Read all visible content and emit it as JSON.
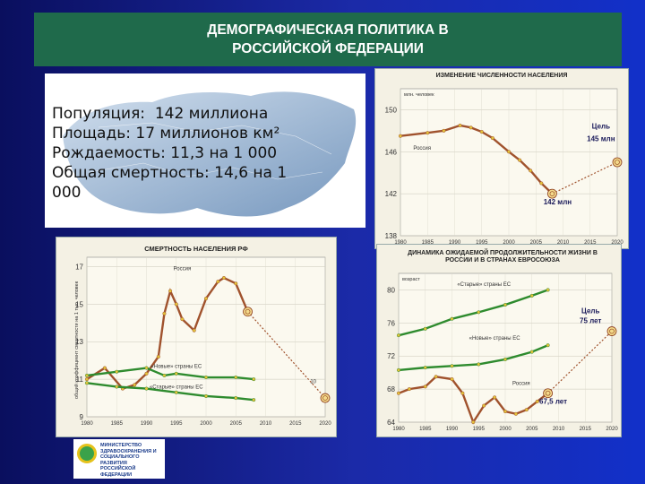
{
  "slide": {
    "title_line1": "ДЕМОГРАФИЧЕСКАЯ ПОЛИТИКА В",
    "title_line2": "РОССИЙСКОЙ ФЕДЕРАЦИИ",
    "facts": [
      "Популяция:  142 миллиона",
      "Площадь: 17 миллионов км²",
      "Рождаемость: 11,3 на 1 000",
      "Общая смертность: 14,6 на 1",
      "000"
    ],
    "logo_text": "МИНИСТЕРСТВО ЗДРАВООХРАНЕНИЯ И СОЦИАЛЬНОГО РАЗВИТИЯ РОССИЙСКОЙ ФЕДЕРАЦИИ"
  },
  "chart_data": [
    {
      "type": "line",
      "title": "ИЗМЕНЕНИЕ ЧИСЛЕННОСТИ НАСЕЛЕНИЯ",
      "ylabel": "млн. человек",
      "x_ticks": [
        "1980",
        "1985",
        "1990",
        "1995",
        "2000",
        "2005",
        "2010",
        "2015",
        "2020"
      ],
      "y_ticks": [
        "138",
        "142",
        "146",
        "150"
      ],
      "ylim": [
        138,
        152
      ],
      "xlim": [
        1980,
        2020
      ],
      "series": [
        {
          "name": "Россия",
          "color": "#a0522d",
          "x": [
            1980,
            1985,
            1988,
            1991,
            1993,
            1995,
            1997,
            2000,
            2002,
            2004,
            2006,
            2008
          ],
          "y": [
            147.5,
            147.8,
            148.0,
            148.5,
            148.3,
            147.9,
            147.3,
            146.0,
            145.2,
            144.2,
            143.0,
            142.0
          ]
        },
        {
          "name": "",
          "color": "#a0522d",
          "dashed": true,
          "x": [
            2008,
            2020
          ],
          "y": [
            142.0,
            145.0
          ]
        }
      ],
      "annotations": [
        {
          "text": "Цель",
          "x": 2017,
          "y": 148.2
        },
        {
          "text": "145 млн",
          "x": 2017,
          "y": 147.0
        },
        {
          "text": "142 млн",
          "x": 2009,
          "y": 141.0
        },
        {
          "text": "Россия",
          "x": 1984,
          "y": 146.2
        }
      ]
    },
    {
      "type": "line",
      "title": "СМЕРТНОСТЬ НАСЕЛЕНИЯ РФ",
      "ylabel": "общий коэффициент смертности на 1 тыс. человек",
      "x_ticks": [
        "1980",
        "1985",
        "1990",
        "1995",
        "2000",
        "2005",
        "2010",
        "2015",
        "2020"
      ],
      "y_ticks": [
        "9",
        "11",
        "13",
        "15",
        "17"
      ],
      "ylim": [
        9,
        17.5
      ],
      "xlim": [
        1980,
        2020
      ],
      "series": [
        {
          "name": "Россия",
          "color": "#a0522d",
          "x": [
            1980,
            1983,
            1986,
            1988,
            1990,
            1992,
            1993,
            1994,
            1995,
            1996,
            1998,
            2000,
            2002,
            2003,
            2005,
            2007
          ],
          "y": [
            11.0,
            11.6,
            10.5,
            10.7,
            11.3,
            12.2,
            14.5,
            15.7,
            15.0,
            14.2,
            13.6,
            15.3,
            16.2,
            16.4,
            16.1,
            14.6
          ]
        },
        {
          "name": "",
          "color": "#a0522d",
          "dashed": true,
          "x": [
            2007,
            2020
          ],
          "y": [
            14.6,
            10.0
          ]
        },
        {
          "name": "«Новые» страны ЕС",
          "color": "#2e8b2e",
          "x": [
            1980,
            1985,
            1990,
            1993,
            1995,
            2000,
            2005,
            2008
          ],
          "y": [
            11.2,
            11.4,
            11.6,
            11.2,
            11.3,
            11.1,
            11.1,
            11.0
          ]
        },
        {
          "name": "«Старые» страны ЕС",
          "color": "#2e8b2e",
          "x": [
            1980,
            1985,
            1990,
            1995,
            2000,
            2005,
            2008
          ],
          "y": [
            10.8,
            10.6,
            10.5,
            10.3,
            10.1,
            10.0,
            9.9
          ]
        }
      ],
      "annotations": [
        {
          "text": "Россия",
          "x": 1996,
          "y": 16.8
        },
        {
          "text": "«Новые» страны ЕС",
          "x": 1995,
          "y": 11.6
        },
        {
          "text": "«Старые» страны ЕС",
          "x": 1995,
          "y": 10.5
        },
        {
          "text": "10",
          "x": 2018,
          "y": 10.8
        }
      ]
    },
    {
      "type": "line",
      "title": "ДИНАМИКА ОЖИДАЕМОЙ ПРОДОЛЖИТЕЛЬНОСТИ ЖИЗНИ В РОССИИ И В СТРАНАХ ЕВРОСОЮЗА",
      "ylabel": "возраст",
      "x_ticks": [
        "1980",
        "1985",
        "1990",
        "1995",
        "2000",
        "2005",
        "2010",
        "2015",
        "2020"
      ],
      "y_ticks": [
        "64",
        "68",
        "72",
        "76",
        "80"
      ],
      "ylim": [
        64,
        82
      ],
      "xlim": [
        1980,
        2020
      ],
      "series": [
        {
          "name": "«Старые» страны ЕС",
          "color": "#2e8b2e",
          "x": [
            1980,
            1985,
            1990,
            1995,
            2000,
            2005,
            2008
          ],
          "y": [
            74.5,
            75.3,
            76.5,
            77.3,
            78.2,
            79.3,
            80.0
          ]
        },
        {
          "name": "«Новые» страны ЕС",
          "color": "#2e8b2e",
          "x": [
            1980,
            1985,
            1990,
            1995,
            2000,
            2005,
            2008
          ],
          "y": [
            70.3,
            70.6,
            70.8,
            71.0,
            71.6,
            72.5,
            73.3
          ]
        },
        {
          "name": "Россия",
          "color": "#a0522d",
          "x": [
            1980,
            1982,
            1985,
            1987,
            1990,
            1992,
            1994,
            1996,
            1998,
            2000,
            2002,
            2004,
            2006,
            2008
          ],
          "y": [
            67.5,
            68.0,
            68.3,
            69.5,
            69.2,
            67.5,
            64.0,
            66.0,
            67.0,
            65.3,
            65.0,
            65.5,
            66.5,
            67.5
          ]
        },
        {
          "name": "",
          "color": "#a0522d",
          "dashed": true,
          "x": [
            2008,
            2020
          ],
          "y": [
            67.5,
            75.0
          ]
        }
      ],
      "annotations": [
        {
          "text": "«Старые» страны ЕС",
          "x": 1996,
          "y": 80.5
        },
        {
          "text": "«Новые» страны ЕС",
          "x": 1998,
          "y": 74.0
        },
        {
          "text": "Цель",
          "x": 2016,
          "y": 77.2
        },
        {
          "text": "75 лет",
          "x": 2016,
          "y": 76.0
        },
        {
          "text": "Россия",
          "x": 2003,
          "y": 68.5
        },
        {
          "text": "67,5 лет",
          "x": 2009,
          "y": 66.2
        }
      ]
    }
  ]
}
